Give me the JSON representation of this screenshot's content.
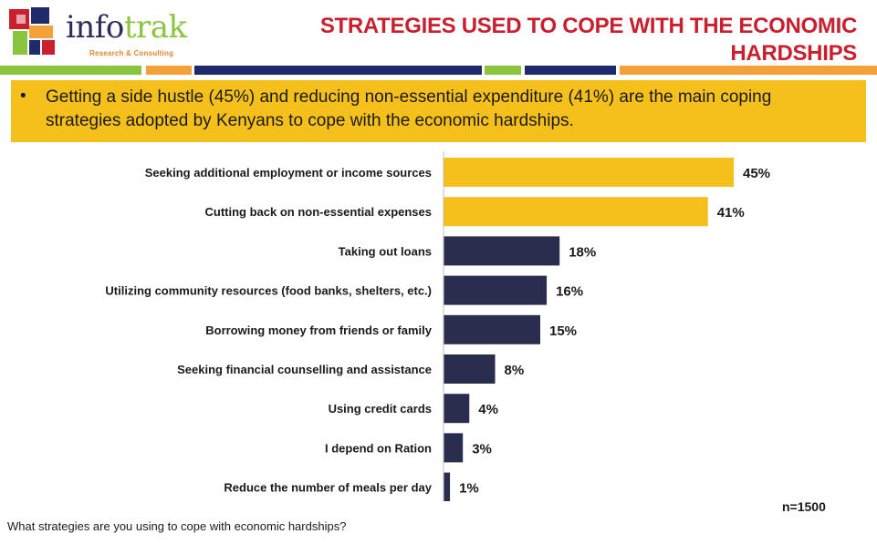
{
  "logo": {
    "word_part1": "info",
    "word_part2": "trak",
    "tagline": "Research & Consulting"
  },
  "header": {
    "title_line1": "STRATEGIES USED TO COPE WITH THE ECONOMIC",
    "title_line2": "HARDSHIPS"
  },
  "banner": {
    "bullet": "•",
    "text": "Getting a side hustle (45%) and reducing non-essential expenditure (41%) are the main coping strategies adopted by Kenyans to cope with the economic hardships."
  },
  "colors": {
    "highlight": "#f6c01c",
    "dark": "#2b2d4e",
    "title_red": "#c8202f",
    "green": "#8bc53f",
    "orange": "#f4a13a",
    "navy": "#1f2a6b"
  },
  "chart_data": {
    "type": "bar",
    "orientation": "horizontal",
    "categories": [
      "Seeking additional employment or income sources",
      "Cutting back on non-essential expenses",
      "Taking out loans",
      "Utilizing community resources (food banks, shelters, etc.)",
      "Borrowing money from friends or family",
      "Seeking financial counselling and assistance",
      "Using credit cards",
      "I depend on Ration",
      "Reduce the number of meals per day"
    ],
    "values": [
      45,
      41,
      18,
      16,
      15,
      8,
      4,
      3,
      1
    ],
    "value_labels": [
      "45%",
      "41%",
      "18%",
      "16%",
      "15%",
      "8%",
      "4%",
      "3%",
      "1%"
    ],
    "highlighted": [
      true,
      true,
      false,
      false,
      false,
      false,
      false,
      false,
      false
    ],
    "xlim": [
      0,
      45
    ],
    "grid": false
  },
  "sample_note": "n=1500",
  "question": "What strategies are you using to cope with economic hardships?"
}
